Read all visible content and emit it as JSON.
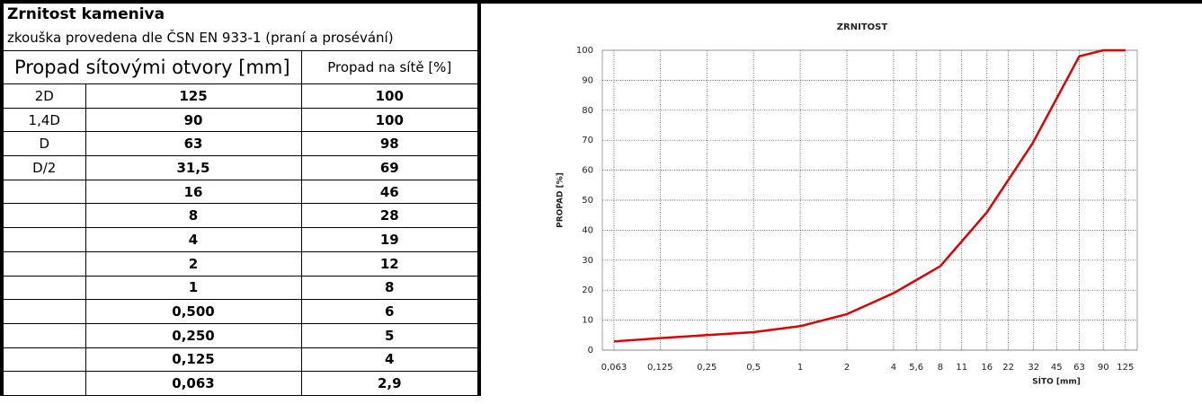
{
  "table": {
    "title": "Zrnitost kameniva",
    "subtitle": "zkouška provedena dle ČSN EN 933-1 (praní a prosévání)",
    "headers": [
      "Propad sítovými otvory [mm]",
      "Propad na sítě [%]"
    ],
    "rows": [
      [
        "2D",
        "125",
        "100"
      ],
      [
        "1,4D",
        "90",
        "100"
      ],
      [
        "D",
        "63",
        "98"
      ],
      [
        "D/2",
        "31,5",
        "69"
      ],
      [
        "",
        "16",
        "46"
      ],
      [
        "",
        "8",
        "28"
      ],
      [
        "",
        "4",
        "19"
      ],
      [
        "",
        "2",
        "12"
      ],
      [
        "",
        "1",
        "8"
      ],
      [
        "",
        "0,500",
        "6"
      ],
      [
        "",
        "0,250",
        "5"
      ],
      [
        "",
        "0,125",
        "4"
      ],
      [
        "",
        "0,063",
        "2,9"
      ]
    ]
  },
  "chart_data": {
    "type": "line",
    "title": "ZRNITOST",
    "x_label": "SÍTO [mm]",
    "y_label": "PROPAD [%]",
    "x": [
      125,
      90,
      63,
      31.5,
      16,
      8,
      4,
      2,
      1,
      0.5,
      0.25,
      0.125,
      0.063
    ],
    "series": [
      {
        "name": "Propad",
        "color": "#e00000",
        "values": [
          100,
          100,
          98,
          69,
          46,
          28,
          19,
          12,
          8,
          6,
          5,
          4,
          2.9
        ]
      }
    ],
    "xscale": "log",
    "xlim": [
      0.053,
      149
    ],
    "xticks": [
      {
        "value": 0.063,
        "label": "0,063"
      },
      {
        "value": 0.125,
        "label": "0,125"
      },
      {
        "value": 0.25,
        "label": "0,25"
      },
      {
        "value": 0.5,
        "label": "0,5"
      },
      1,
      2,
      4,
      {
        "value": 5.6,
        "label": "5,6"
      },
      8,
      11,
      16,
      22,
      32,
      45,
      63,
      90,
      125
    ],
    "ylim": [
      0,
      100
    ],
    "yticks": [
      0,
      10,
      20,
      30,
      40,
      50,
      60,
      70,
      80,
      90,
      100
    ],
    "grid": true,
    "legend": false
  }
}
